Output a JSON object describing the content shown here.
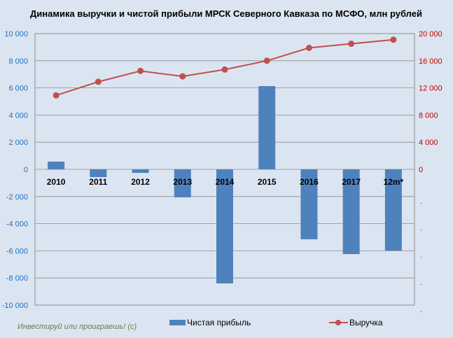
{
  "chart_data": {
    "type": "bar+line",
    "title": "Динамика выручки и чистой прибыли МРСК Северного Кавказа по МСФО, млн рублей",
    "categories": [
      "2010",
      "2011",
      "2012",
      "2013",
      "2014",
      "2015",
      "2016",
      "2017",
      "12m*"
    ],
    "series": [
      {
        "name": "Чистая прибыль",
        "type": "bar",
        "axis": "left",
        "color": "#4f81bd",
        "values": [
          570,
          -570,
          -260,
          -2060,
          -8400,
          6130,
          -5150,
          -6240,
          -5980
        ]
      },
      {
        "name": "Выручка",
        "type": "line",
        "axis": "right",
        "color": "#c0504d",
        "values": [
          10900,
          12900,
          14500,
          13700,
          14700,
          16000,
          17900,
          18500,
          19100
        ]
      }
    ],
    "left_axis": {
      "ylim": [
        -10000,
        10000
      ],
      "ticks": [
        "10 000",
        "8 000",
        "6 000",
        "4 000",
        "2 000",
        "0",
        "-2 000",
        "-4 000",
        "-6 000",
        "-8 000",
        "-10 000"
      ],
      "color": "#1f6fbf"
    },
    "right_axis": {
      "ylim": [
        0,
        20000
      ],
      "ticks": [
        "20 000",
        "16 000",
        "12 000",
        "8 000",
        "4 000",
        "0"
      ],
      "color": "#c00000"
    },
    "legend": "bottom",
    "grid": true
  },
  "watermark": "Инвестируй или проиграешь! (с)"
}
